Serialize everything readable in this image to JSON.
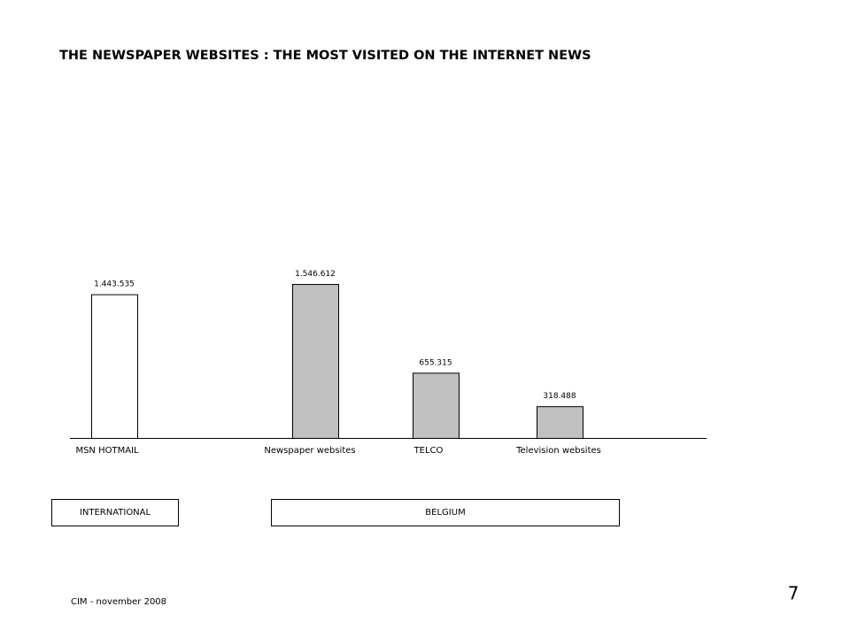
{
  "chart_data": {
    "type": "bar",
    "title": "THE NEWSPAPER WEBSITES : THE MOST VISITED ON THE INTERNET NEWS",
    "categories": [
      "MSN HOTMAIL",
      "Newspaper  websites",
      "TELCO",
      "Television websites"
    ],
    "values": [
      1443535,
      1546612,
      655315,
      318488
    ],
    "value_labels": [
      "1.443.535",
      "1.546.612",
      "655.315",
      "318.488"
    ],
    "colors": [
      "#ffffff",
      "#c0c0c0",
      "#c0c0c0",
      "#c0c0c0"
    ],
    "groups": [
      "INTERNATIONAL",
      "BELGIUM"
    ]
  },
  "footer": {
    "source": "CIM - november 2008",
    "page_number": "7"
  }
}
